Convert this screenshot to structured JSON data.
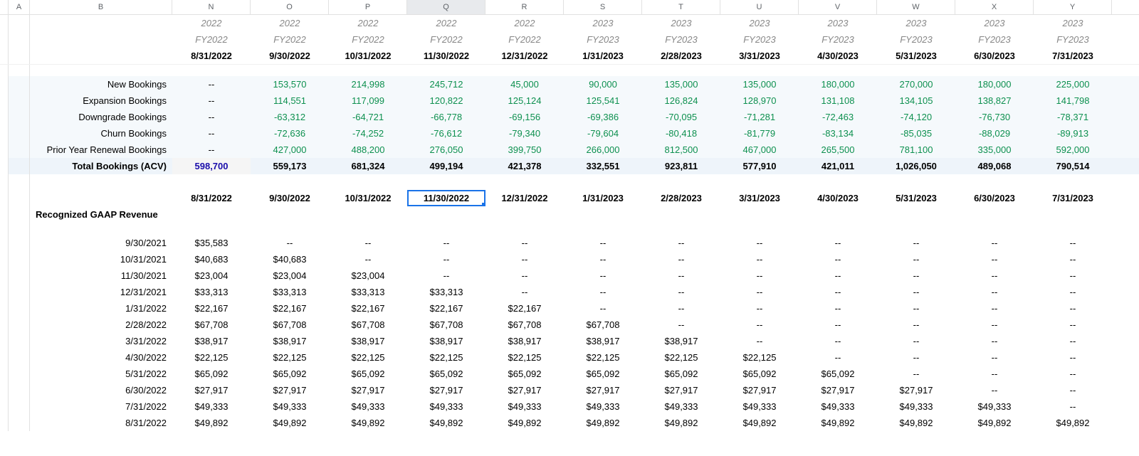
{
  "columns": {
    "letters": [
      "A",
      "B",
      "N",
      "O",
      "P",
      "Q",
      "R",
      "S",
      "T",
      "U",
      "V",
      "W",
      "X",
      "Y"
    ],
    "selected": "Q"
  },
  "headers": {
    "years": [
      "2022",
      "2022",
      "2022",
      "2022",
      "2022",
      "2023",
      "2023",
      "2023",
      "2023",
      "2023",
      "2023",
      "2023"
    ],
    "fys": [
      "FY2022",
      "FY2022",
      "FY2022",
      "FY2022",
      "FY2022",
      "FY2023",
      "FY2023",
      "FY2023",
      "FY2023",
      "FY2023",
      "FY2023",
      "FY2023"
    ],
    "dates": [
      "8/31/2022",
      "9/30/2022",
      "10/31/2022",
      "11/30/2022",
      "12/31/2022",
      "1/31/2023",
      "2/28/2023",
      "3/31/2023",
      "4/30/2023",
      "5/31/2023",
      "6/30/2023",
      "7/31/2023"
    ]
  },
  "bookings": {
    "rows": [
      {
        "label": "New Bookings",
        "values": [
          "--",
          "153,570",
          "214,998",
          "245,712",
          "45,000",
          "90,000",
          "135,000",
          "135,000",
          "180,000",
          "270,000",
          "180,000",
          "225,000"
        ]
      },
      {
        "label": "Expansion Bookings",
        "values": [
          "--",
          "114,551",
          "117,099",
          "120,822",
          "125,124",
          "125,541",
          "126,824",
          "128,970",
          "131,108",
          "134,105",
          "138,827",
          "141,798"
        ]
      },
      {
        "label": "Downgrade Bookings",
        "values": [
          "--",
          "-63,312",
          "-64,721",
          "-66,778",
          "-69,156",
          "-69,386",
          "-70,095",
          "-71,281",
          "-72,463",
          "-74,120",
          "-76,730",
          "-78,371"
        ]
      },
      {
        "label": "Churn Bookings",
        "values": [
          "--",
          "-72,636",
          "-74,252",
          "-76,612",
          "-79,340",
          "-79,604",
          "-80,418",
          "-81,779",
          "-83,134",
          "-85,035",
          "-88,029",
          "-89,913"
        ]
      },
      {
        "label": "Prior Year Renewal Bookings",
        "values": [
          "--",
          "427,000",
          "488,200",
          "276,050",
          "399,750",
          "266,000",
          "812,500",
          "467,000",
          "265,500",
          "781,100",
          "335,000",
          "592,000"
        ]
      }
    ],
    "total": {
      "label": "Total Bookings (ACV)",
      "values": [
        "598,700",
        "559,173",
        "681,324",
        "499,194",
        "421,378",
        "332,551",
        "923,811",
        "577,910",
        "421,011",
        "1,026,050",
        "489,068",
        "790,514"
      ]
    }
  },
  "dateRow2": [
    "8/31/2022",
    "9/30/2022",
    "10/31/2022",
    "11/30/2022",
    "12/31/2022",
    "1/31/2023",
    "2/28/2023",
    "3/31/2023",
    "4/30/2023",
    "5/31/2023",
    "6/30/2023",
    "7/31/2023"
  ],
  "gaap": {
    "header": "Recognized GAAP Revenue",
    "rows": [
      {
        "label": "9/30/2021",
        "values": [
          "$35,583",
          "--",
          "--",
          "--",
          "--",
          "--",
          "--",
          "--",
          "--",
          "--",
          "--",
          "--"
        ]
      },
      {
        "label": "10/31/2021",
        "values": [
          "$40,683",
          "$40,683",
          "--",
          "--",
          "--",
          "--",
          "--",
          "--",
          "--",
          "--",
          "--",
          "--"
        ]
      },
      {
        "label": "11/30/2021",
        "values": [
          "$23,004",
          "$23,004",
          "$23,004",
          "--",
          "--",
          "--",
          "--",
          "--",
          "--",
          "--",
          "--",
          "--"
        ]
      },
      {
        "label": "12/31/2021",
        "values": [
          "$33,313",
          "$33,313",
          "$33,313",
          "$33,313",
          "--",
          "--",
          "--",
          "--",
          "--",
          "--",
          "--",
          "--"
        ]
      },
      {
        "label": "1/31/2022",
        "values": [
          "$22,167",
          "$22,167",
          "$22,167",
          "$22,167",
          "$22,167",
          "--",
          "--",
          "--",
          "--",
          "--",
          "--",
          "--"
        ]
      },
      {
        "label": "2/28/2022",
        "values": [
          "$67,708",
          "$67,708",
          "$67,708",
          "$67,708",
          "$67,708",
          "$67,708",
          "--",
          "--",
          "--",
          "--",
          "--",
          "--"
        ]
      },
      {
        "label": "3/31/2022",
        "values": [
          "$38,917",
          "$38,917",
          "$38,917",
          "$38,917",
          "$38,917",
          "$38,917",
          "$38,917",
          "--",
          "--",
          "--",
          "--",
          "--"
        ]
      },
      {
        "label": "4/30/2022",
        "values": [
          "$22,125",
          "$22,125",
          "$22,125",
          "$22,125",
          "$22,125",
          "$22,125",
          "$22,125",
          "$22,125",
          "--",
          "--",
          "--",
          "--"
        ]
      },
      {
        "label": "5/31/2022",
        "values": [
          "$65,092",
          "$65,092",
          "$65,092",
          "$65,092",
          "$65,092",
          "$65,092",
          "$65,092",
          "$65,092",
          "$65,092",
          "--",
          "--",
          "--"
        ]
      },
      {
        "label": "6/30/2022",
        "values": [
          "$27,917",
          "$27,917",
          "$27,917",
          "$27,917",
          "$27,917",
          "$27,917",
          "$27,917",
          "$27,917",
          "$27,917",
          "$27,917",
          "--",
          "--"
        ]
      },
      {
        "label": "7/31/2022",
        "values": [
          "$49,333",
          "$49,333",
          "$49,333",
          "$49,333",
          "$49,333",
          "$49,333",
          "$49,333",
          "$49,333",
          "$49,333",
          "$49,333",
          "$49,333",
          "--"
        ]
      },
      {
        "label": "8/31/2022",
        "values": [
          "$49,892",
          "$49,892",
          "$49,892",
          "$49,892",
          "$49,892",
          "$49,892",
          "$49,892",
          "$49,892",
          "$49,892",
          "$49,892",
          "$49,892",
          "$49,892"
        ]
      }
    ]
  },
  "selectedCell": {
    "row": "dateRow2",
    "col": 3
  }
}
